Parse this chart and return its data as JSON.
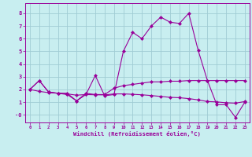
{
  "xlabel": "Windchill (Refroidissement éolien,°C)",
  "xlim": [
    -0.5,
    23.5
  ],
  "ylim": [
    -0.6,
    8.8
  ],
  "yticks": [
    0,
    1,
    2,
    3,
    4,
    5,
    6,
    7,
    8
  ],
  "ytick_labels": [
    "-0",
    "1",
    "2",
    "3",
    "4",
    "5",
    "6",
    "7",
    "8"
  ],
  "xticks": [
    0,
    1,
    2,
    3,
    4,
    5,
    6,
    7,
    8,
    9,
    10,
    11,
    12,
    13,
    14,
    15,
    16,
    17,
    18,
    19,
    20,
    21,
    22,
    23
  ],
  "background_color": "#c8eef0",
  "grid_color": "#a0ccd4",
  "line_color": "#990099",
  "series1_x": [
    0,
    1,
    2,
    3,
    4,
    5,
    6,
    7,
    8,
    9,
    10,
    11,
    12,
    13,
    14,
    15,
    16,
    17,
    18,
    19,
    20,
    21,
    22,
    23
  ],
  "series1_y": [
    2.0,
    2.7,
    1.8,
    1.7,
    1.7,
    1.1,
    1.7,
    1.6,
    1.6,
    2.1,
    2.3,
    2.4,
    2.5,
    2.6,
    2.6,
    2.65,
    2.65,
    2.7,
    2.7,
    2.7,
    2.7,
    2.7,
    2.7,
    2.7
  ],
  "series2_x": [
    0,
    1,
    2,
    3,
    4,
    5,
    6,
    7,
    8,
    9,
    10,
    11,
    12,
    13,
    14,
    15,
    16,
    17,
    18,
    19,
    20,
    21,
    22,
    23
  ],
  "series2_y": [
    2.0,
    1.85,
    1.75,
    1.7,
    1.65,
    1.55,
    1.6,
    1.58,
    1.57,
    1.65,
    1.65,
    1.62,
    1.58,
    1.52,
    1.45,
    1.38,
    1.35,
    1.28,
    1.18,
    1.05,
    1.02,
    0.95,
    0.92,
    1.05
  ],
  "series3_x": [
    0,
    1,
    2,
    3,
    4,
    5,
    6,
    7,
    8,
    9,
    10,
    11,
    12,
    13,
    14,
    15,
    16,
    17,
    18,
    19,
    20,
    21,
    22,
    23
  ],
  "series3_y": [
    2.0,
    2.7,
    1.8,
    1.7,
    1.6,
    1.1,
    1.6,
    3.1,
    1.5,
    1.6,
    5.0,
    6.5,
    6.0,
    7.0,
    7.7,
    7.3,
    7.2,
    8.0,
    5.1,
    2.7,
    0.8,
    0.8,
    -0.2,
    1.0
  ],
  "marker": "D",
  "marker_size": 2.5,
  "lw": 0.8
}
